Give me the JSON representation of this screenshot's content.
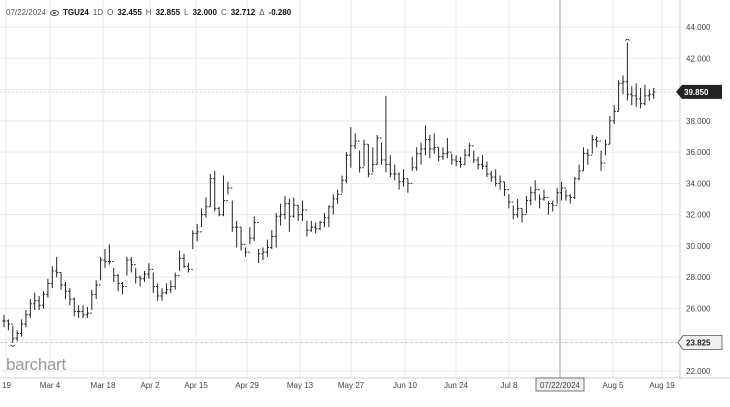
{
  "header": {
    "date": "07/22/2024",
    "symbol": "TGU24",
    "interval": "1D",
    "open_label": "O",
    "open": "32.455",
    "high_label": "H",
    "high": "32.855",
    "low_label": "L",
    "low": "32.000",
    "close_label": "C",
    "close": "32.712",
    "change_label": "Δ",
    "change": "-0.280"
  },
  "logo": "barchart",
  "colors": {
    "bars": "#222222",
    "grid": "#e6e6e6",
    "last_badge": "#222222",
    "crosshair_badge": "#f0f0f0"
  },
  "chart_data": {
    "type": "ohlc",
    "title": "",
    "xlabel": "",
    "ylabel": "",
    "ylim": [
      22,
      45
    ],
    "y_ticks": [
      "44.000",
      "42.000",
      "40.000",
      "38.000",
      "36.000",
      "34.000",
      "32.000",
      "30.000",
      "28.000",
      "26.000",
      "24.000",
      "22.000"
    ],
    "x_ticks": [
      "19",
      "Mar 4",
      "Mar 18",
      "Apr 2",
      "Apr 15",
      "Apr 29",
      "May 13",
      "May 27",
      "Jun 10",
      "Jun 24",
      "Jul 8",
      "07/22/2024",
      "Aug 5",
      "Aug 19"
    ],
    "last_price": "39.850",
    "crosshair": {
      "price": "23.825",
      "date": "07/22/2024"
    },
    "grid": true,
    "series": [
      {
        "values": [
          [
            25.6,
            24.8,
            25.2
          ],
          [
            25.3,
            24.6,
            25.0
          ],
          [
            24.9,
            23.8,
            24.1
          ],
          [
            24.6,
            23.9,
            24.4
          ],
          [
            25.3,
            24.2,
            25.0
          ],
          [
            25.9,
            24.8,
            25.6
          ],
          [
            26.6,
            25.4,
            26.3
          ],
          [
            27.0,
            25.9,
            26.5
          ],
          [
            26.8,
            25.9,
            26.2
          ],
          [
            27.1,
            26.0,
            26.9
          ],
          [
            27.9,
            26.7,
            27.6
          ],
          [
            28.7,
            27.3,
            28.4
          ],
          [
            29.3,
            28.0,
            28.3
          ],
          [
            28.3,
            27.2,
            27.5
          ],
          [
            27.7,
            26.6,
            27.1
          ],
          [
            27.3,
            26.2,
            26.6
          ],
          [
            26.7,
            25.5,
            25.8
          ],
          [
            26.2,
            25.4,
            25.8
          ],
          [
            26.2,
            25.4,
            25.6
          ],
          [
            26.1,
            25.4,
            25.7
          ],
          [
            27.2,
            25.9,
            26.9
          ],
          [
            27.8,
            26.6,
            27.5
          ],
          [
            29.3,
            27.8,
            29.1
          ],
          [
            29.8,
            28.6,
            29.0
          ],
          [
            30.1,
            28.8,
            29.0
          ],
          [
            28.6,
            27.7,
            28.1
          ],
          [
            28.2,
            27.1,
            27.6
          ],
          [
            27.7,
            26.9,
            27.4
          ],
          [
            29.3,
            28.1,
            29.1
          ],
          [
            29.3,
            28.3,
            28.8
          ],
          [
            28.6,
            27.6,
            28.0
          ],
          [
            28.1,
            27.4,
            27.9
          ],
          [
            28.4,
            27.7,
            28.2
          ],
          [
            28.9,
            27.9,
            28.5
          ],
          [
            28.3,
            27.0,
            27.4
          ],
          [
            27.6,
            26.5,
            26.8
          ],
          [
            27.3,
            26.5,
            27.0
          ],
          [
            27.6,
            26.9,
            27.2
          ],
          [
            27.8,
            27.0,
            27.4
          ],
          [
            28.3,
            27.2,
            28.1
          ],
          [
            29.7,
            28.4,
            29.2
          ],
          [
            29.5,
            28.6,
            28.7
          ],
          [
            28.9,
            28.3,
            28.5
          ],
          [
            31.0,
            29.8,
            30.8
          ],
          [
            31.4,
            30.3,
            30.9
          ],
          [
            32.4,
            31.2,
            32.0
          ],
          [
            33.1,
            31.8,
            32.5
          ],
          [
            34.6,
            32.5,
            34.3
          ],
          [
            34.8,
            32.2,
            32.4
          ],
          [
            32.5,
            31.9,
            32.0
          ],
          [
            34.5,
            31.9,
            32.9
          ],
          [
            34.1,
            33.3,
            33.7
          ],
          [
            32.9,
            30.9,
            31.2
          ],
          [
            31.6,
            29.9,
            31.2
          ],
          [
            31.2,
            29.7,
            30.1
          ],
          [
            29.9,
            29.3,
            29.6
          ],
          [
            31.2,
            30.1,
            30.5
          ],
          [
            31.9,
            30.3,
            31.5
          ],
          [
            29.8,
            28.9,
            29.5
          ],
          [
            29.9,
            29.1,
            29.6
          ],
          [
            30.4,
            29.3,
            29.9
          ],
          [
            31.0,
            29.8,
            30.6
          ],
          [
            32.1,
            29.9,
            31.9
          ],
          [
            32.7,
            31.3,
            32.0
          ],
          [
            33.2,
            31.7,
            32.7
          ],
          [
            33.0,
            30.9,
            31.9
          ],
          [
            33.1,
            31.8,
            32.6
          ],
          [
            32.6,
            31.6,
            32.0
          ],
          [
            32.9,
            31.6,
            32.3
          ],
          [
            31.6,
            30.6,
            31.0
          ],
          [
            31.6,
            30.9,
            31.2
          ],
          [
            31.5,
            30.8,
            31.1
          ],
          [
            31.6,
            31.0,
            31.5
          ],
          [
            32.1,
            31.2,
            31.8
          ],
          [
            32.6,
            31.2,
            32.5
          ],
          [
            33.3,
            32.0,
            33.0
          ],
          [
            33.6,
            32.7,
            33.3
          ],
          [
            34.5,
            33.4,
            34.2
          ],
          [
            36.0,
            34.0,
            35.8
          ],
          [
            37.6,
            35.0,
            36.4
          ],
          [
            37.2,
            36.2,
            36.7
          ],
          [
            36.1,
            34.7,
            35.0
          ],
          [
            36.8,
            35.1,
            36.5
          ],
          [
            36.5,
            34.4,
            34.6
          ],
          [
            36.3,
            34.7,
            35.2
          ],
          [
            37.1,
            35.2,
            36.9
          ],
          [
            36.6,
            35.2,
            35.5
          ],
          [
            39.6,
            34.7,
            35.2
          ],
          [
            35.8,
            34.4,
            34.6
          ],
          [
            35.2,
            34.2,
            34.6
          ],
          [
            34.7,
            33.6,
            34.1
          ],
          [
            34.9,
            33.8,
            34.3
          ],
          [
            34.3,
            33.4,
            34.0
          ],
          [
            35.7,
            34.8,
            35.0
          ],
          [
            36.3,
            34.8,
            35.9
          ],
          [
            36.6,
            35.2,
            36.2
          ],
          [
            37.7,
            35.8,
            36.8
          ],
          [
            37.1,
            35.6,
            36.2
          ],
          [
            37.2,
            35.9,
            36.3
          ],
          [
            36.3,
            35.4,
            35.7
          ],
          [
            36.3,
            35.5,
            35.9
          ],
          [
            36.9,
            35.6,
            36.0
          ],
          [
            35.9,
            35.2,
            35.5
          ],
          [
            35.8,
            35.1,
            35.4
          ],
          [
            35.7,
            35.0,
            35.2
          ],
          [
            36.2,
            35.2,
            35.8
          ],
          [
            36.6,
            35.7,
            36.4
          ],
          [
            36.1,
            35.3,
            35.5
          ],
          [
            35.7,
            34.9,
            35.2
          ],
          [
            35.8,
            34.9,
            35.1
          ],
          [
            35.4,
            34.4,
            34.6
          ],
          [
            34.8,
            34.1,
            34.4
          ],
          [
            34.9,
            33.8,
            34.0
          ],
          [
            34.5,
            33.6,
            34.1
          ],
          [
            34.1,
            33.2,
            33.6
          ],
          [
            33.3,
            32.4,
            32.8
          ],
          [
            32.6,
            31.7,
            32.0
          ],
          [
            33.0,
            31.8,
            32.4
          ],
          [
            32.4,
            31.5,
            32.0
          ],
          [
            33.2,
            32.1,
            32.9
          ],
          [
            33.8,
            32.6,
            33.4
          ],
          [
            34.2,
            32.9,
            33.6
          ],
          [
            33.3,
            32.4,
            33.0
          ],
          [
            33.6,
            32.9,
            33.1
          ],
          [
            32.855,
            32.0,
            32.712
          ],
          [
            32.9,
            32.2,
            32.6
          ],
          [
            33.7,
            32.7,
            33.4
          ],
          [
            34.1,
            32.9,
            33.7
          ],
          [
            33.6,
            32.9,
            33.2
          ],
          [
            33.3,
            32.7,
            33.1
          ],
          [
            34.4,
            33.0,
            34.3
          ],
          [
            35.2,
            34.2,
            34.8
          ],
          [
            36.3,
            34.8,
            35.9
          ],
          [
            36.2,
            35.2,
            35.8
          ],
          [
            37.1,
            35.9,
            36.8
          ],
          [
            37.0,
            36.3,
            36.7
          ],
          [
            36.1,
            34.8,
            35.3
          ],
          [
            36.8,
            35.8,
            36.5
          ],
          [
            38.3,
            36.5,
            38.0
          ],
          [
            39.0,
            37.8,
            38.6
          ],
          [
            40.6,
            38.6,
            40.4
          ],
          [
            40.9,
            39.7,
            40.5
          ],
          [
            43.0,
            39.3,
            39.7
          ],
          [
            40.2,
            39.0,
            39.6
          ],
          [
            40.4,
            38.9,
            39.4
          ],
          [
            40.1,
            38.8,
            39.1
          ],
          [
            40.3,
            39.0,
            39.6
          ],
          [
            40.0,
            39.3,
            39.7
          ],
          [
            40.1,
            39.4,
            39.85
          ]
        ]
      }
    ]
  }
}
